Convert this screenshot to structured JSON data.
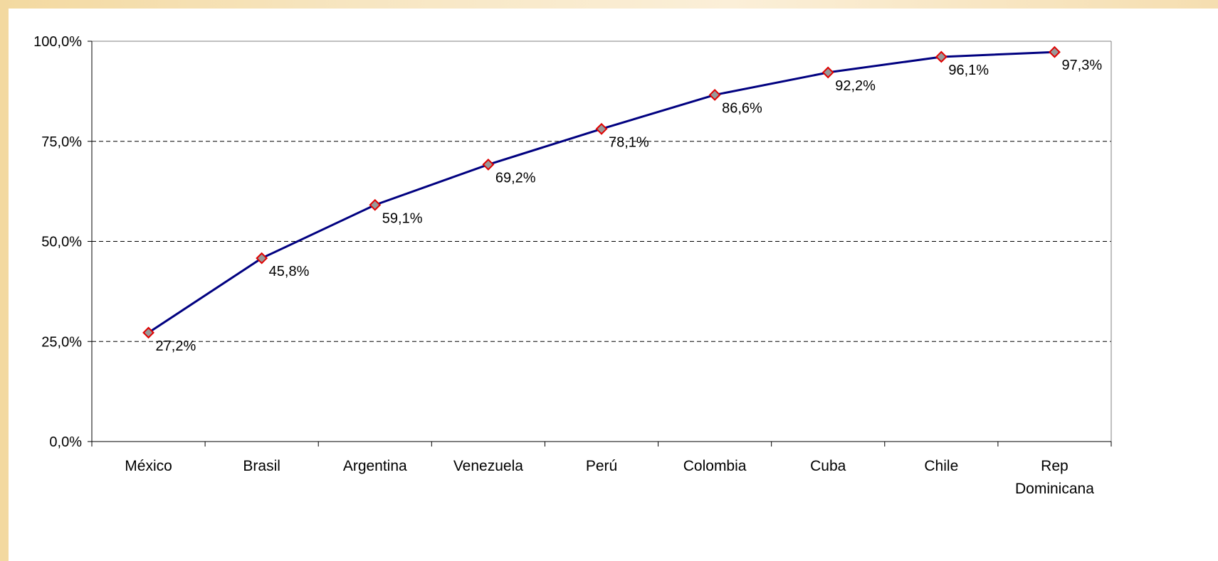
{
  "chart_data": {
    "type": "line",
    "categories": [
      "México",
      "Brasil",
      "Argentina",
      "Venezuela",
      "Perú",
      "Colombia",
      "Cuba",
      "Chile",
      "Rep Dominicana"
    ],
    "category_lines": [
      [
        "México"
      ],
      [
        "Brasil"
      ],
      [
        "Argentina"
      ],
      [
        "Venezuela"
      ],
      [
        "Perú"
      ],
      [
        "Colombia"
      ],
      [
        "Cuba"
      ],
      [
        "Chile"
      ],
      [
        "Rep",
        "Dominicana"
      ]
    ],
    "series": [
      {
        "values": [
          27.2,
          45.8,
          59.1,
          69.2,
          78.1,
          86.6,
          92.2,
          96.1,
          97.3
        ],
        "labels": [
          "27,2%",
          "45,8%",
          "59,1%",
          "69,2%",
          "78,1%",
          "86,6%",
          "92,2%",
          "96,1%",
          "97,3%"
        ],
        "line_color": "#000080",
        "marker": "diamond",
        "marker_fill": "#999999",
        "marker_stroke": "#e00000"
      }
    ],
    "ylim": [
      0,
      100
    ],
    "y_ticks": [
      0,
      25,
      50,
      75,
      100
    ],
    "y_tick_labels": [
      "0,0%",
      "25,0%",
      "50,0%",
      "75,0%",
      "100,0%"
    ],
    "grid": "horizontal dashed",
    "title": "",
    "xlabel": "",
    "ylabel": ""
  }
}
